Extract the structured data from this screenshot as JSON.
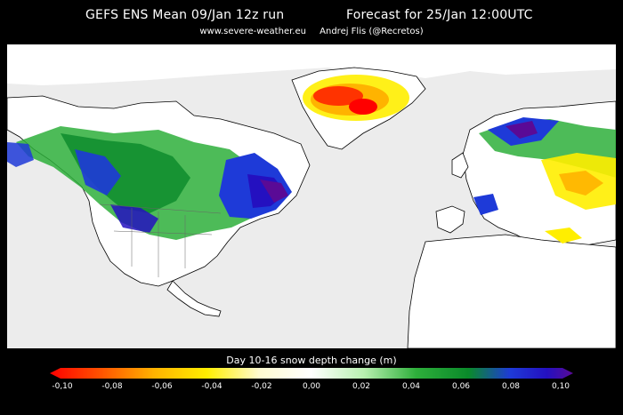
{
  "header": {
    "left_title": "GEFS ENS Mean  09/Jan 12z run",
    "right_title": "Forecast for 25/Jan 12:00UTC",
    "website": "www.severe-weather.eu",
    "author": "Andrej Flis (@Recretos)"
  },
  "colorbar": {
    "title": "Day 10-16 snow depth change (m)",
    "ticks": [
      "-0,10",
      "-0,08",
      "-0,06",
      "-0,04",
      "-0,02",
      "0,00",
      "0,02",
      "0,04",
      "0,06",
      "0,08",
      "0,10"
    ],
    "range": [
      -0.1,
      0.1
    ],
    "colors": [
      "#ff0000",
      "#ff7700",
      "#ffb300",
      "#ffee00",
      "#fffbd0",
      "#ffffff",
      "#b8f0b0",
      "#2eaf3b",
      "#0a8a2a",
      "#1e3ad8",
      "#2410c0",
      "#5a0a96"
    ]
  },
  "map": {
    "projection": "northern-hemisphere-equirectangular",
    "land_color": "#ffffff",
    "ocean_color": "#ececec",
    "border_color": "#000000"
  }
}
